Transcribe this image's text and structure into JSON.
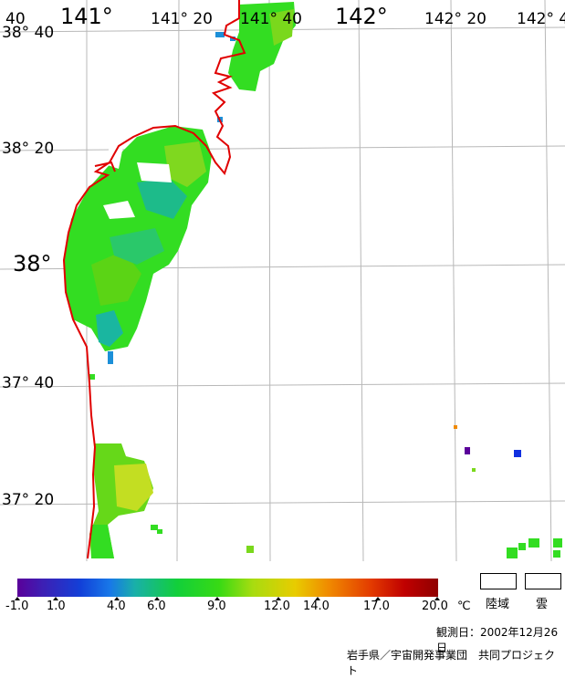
{
  "map": {
    "lon_labels": [
      {
        "key": "lon141",
        "text": "141°"
      },
      {
        "key": "lon141_20",
        "text": "141° 20"
      },
      {
        "key": "lon141_40",
        "text": "141° 40"
      },
      {
        "key": "lon142",
        "text": "142°"
      },
      {
        "key": "lon142_20",
        "text": "142° 20"
      },
      {
        "key": "lon142_40",
        "text": "142° 4"
      }
    ],
    "lat_labels": [
      {
        "key": "lat38_40_top",
        "text": "40"
      },
      {
        "key": "lat38_40",
        "text": "38° 40"
      },
      {
        "key": "lat38_20",
        "text": "38° 20"
      },
      {
        "key": "lat38",
        "text": "38°"
      },
      {
        "key": "lat37_40",
        "text": "37° 40"
      },
      {
        "key": "lat37_20",
        "text": "37° 20"
      }
    ]
  },
  "scale": {
    "ticks": [
      "-1.0",
      "1.0",
      "4.0",
      "6.0",
      "9.0",
      "12.0",
      "14.0",
      "17.0",
      "20.0"
    ],
    "unit": "℃"
  },
  "legend": {
    "land_label": "陸域",
    "cloud_label": "雲"
  },
  "footer": {
    "observation_date": "観測日：2002年12月26日",
    "credit": "岩手県／宇宙開発事業団　共同プロジェクト"
  },
  "colors": {
    "coastline": "#e00000",
    "grid": "#b8b8b8",
    "land": "#ffffff"
  }
}
